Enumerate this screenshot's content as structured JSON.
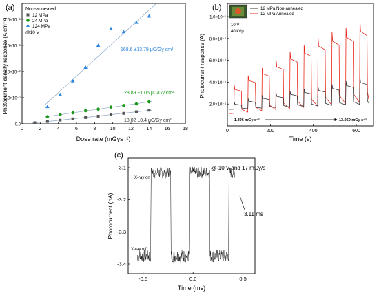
{
  "colors": {
    "gray": "#555555",
    "green": "#1a9a1a",
    "blue": "#2e86de",
    "red": "#e8281e",
    "dark": "#3a3a3a",
    "fit": "#8aa6c4"
  },
  "chart_data": [
    {
      "id": "a",
      "type": "scatter",
      "panel_label": "(a)",
      "xlabel": "Dose rate (mGys⁻¹)",
      "ylabel": "Photocurrent density response (A cm⁻²)",
      "xlim": [
        0,
        18
      ],
      "ylim": [
        0,
        2.3e-06
      ],
      "xticks": [
        "0",
        "2",
        "4",
        "6",
        "8",
        "10",
        "12",
        "14",
        "16",
        "18"
      ],
      "yticks": [
        "0.0",
        "5.0×10⁻⁷",
        "1.0×10⁻⁶",
        "1.5×10⁻⁶",
        "2.0×10⁻⁶"
      ],
      "legend_title": "Non-annealed",
      "legend_note": "@10 V",
      "series": [
        {
          "name": "12 MPa",
          "marker": "square",
          "color": "#555555",
          "x": [
            1.4,
            2.8,
            4.2,
            5.6,
            7.0,
            8.4,
            9.8,
            11.2,
            12.6,
            14.0
          ],
          "y": [
            2e-08,
            4.5e-08,
            7e-08,
            9.5e-08,
            1.2e-07,
            1.45e-07,
            1.75e-07,
            2e-07,
            2.3e-07,
            2.6e-07
          ],
          "annotation": "18.02 ±0.4 μC/Gy cm²"
        },
        {
          "name": "24 MPa",
          "marker": "circle",
          "color": "#1a9a1a",
          "x": [
            2.8,
            4.2,
            5.6,
            7.0,
            8.4,
            9.8,
            11.2,
            12.6,
            14.0
          ],
          "y": [
            1.35e-07,
            1.75e-07,
            2.1e-07,
            2.5e-07,
            2.8e-07,
            3.2e-07,
            3.5e-07,
            3.8e-07,
            4.2e-07
          ],
          "annotation": "28.89 ±1.06 μC/Gy cm²"
        },
        {
          "name": "124 MPa",
          "marker": "triangle",
          "color": "#2e86de",
          "x": [
            2.8,
            4.2,
            5.6,
            7.0,
            8.4,
            9.8,
            11.2,
            12.6,
            14.0
          ],
          "y": [
            3.3e-07,
            5.6e-07,
            8.2e-07,
            1.08e-06,
            1.5e-06,
            1.82e-06,
            1.76e-06,
            1.94e-06,
            2.06e-06
          ],
          "annotation": "168.6 ±13.79 μC/Gy cm²"
        }
      ]
    },
    {
      "id": "b",
      "type": "line",
      "panel_label": "(b)",
      "xlabel": "Time (s)",
      "ylabel": "Photocurrent response (A)",
      "xlim": [
        0,
        680
      ],
      "ylim": [
        0,
        1.12e-07
      ],
      "xticks": [
        "0",
        "200",
        "400",
        "600"
      ],
      "yticks": [
        "2.0×10⁻⁸",
        "4.0×10⁻⁸",
        "6.0×10⁻⁸",
        "8.0×10⁻⁸",
        "1.0×10⁻⁷"
      ],
      "inset_text": [
        "10 V",
        "40 kVp"
      ],
      "dose_start": "1.396 mGy s⁻¹",
      "dose_end": "13.960 mGy s⁻¹",
      "pulse_on_times": [
        30,
        95,
        160,
        225,
        290,
        355,
        420,
        485,
        550,
        615
      ],
      "pulse_duration_s": 35,
      "series": [
        {
          "name": "12 MPa Non-annealed",
          "color": "#3a3a3a",
          "peak": [
            2.2e-08,
            2.5e-08,
            2.8e-08,
            3e-08,
            3.2e-08,
            3.4e-08,
            3.6e-08,
            3.8e-08,
            4.1e-08,
            4.4e-08
          ],
          "baseline_start": 1.5e-08,
          "baseline_end": 2e-08
        },
        {
          "name": "12 MPa Annealed",
          "color": "#e8281e",
          "peak": [
            3.7e-08,
            4.6e-08,
            5.3e-08,
            6e-08,
            6.8e-08,
            7.4e-08,
            8.1e-08,
            8.6e-08,
            9e-08,
            9.6e-08
          ],
          "baseline_start": 1.1e-08,
          "baseline_end": 2.2e-08
        }
      ]
    },
    {
      "id": "c",
      "type": "line",
      "panel_label": "(c)",
      "xlabel": "Time (ms)",
      "ylabel": "Photocurrent (nA)",
      "xlim": [
        -0.65,
        0.62
      ],
      "ylim": [
        -3.43,
        -3.07
      ],
      "xticks": [
        "-0.5",
        "0.0",
        "0.5"
      ],
      "yticks": [
        "-3.1",
        "-3.2",
        "-3.3",
        "-3.4"
      ],
      "condition": "@-10 V and 17 mGy/s",
      "label_on": "X-ray on",
      "label_off": "X-ray off",
      "rise_time": "3.11 ms",
      "level_on": -3.115,
      "level_off": -3.375,
      "transitions_ms": [
        -0.42,
        -0.22,
        -0.03,
        0.17,
        0.36
      ]
    }
  ]
}
